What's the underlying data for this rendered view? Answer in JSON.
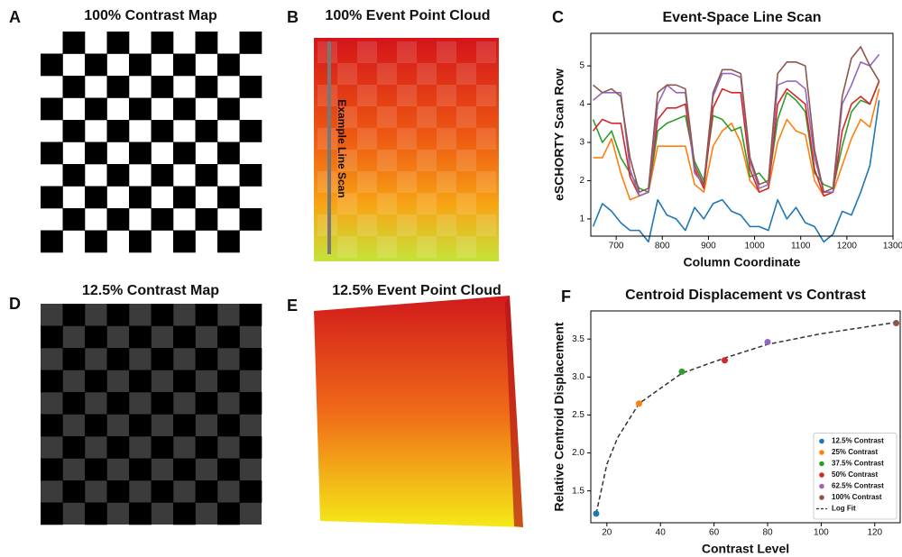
{
  "panel_labels": [
    "A",
    "B",
    "C",
    "D",
    "E",
    "F"
  ],
  "images": [
    {
      "title": "100% Contrast Map"
    },
    {
      "title": "100% Event Point Cloud",
      "annotation": "Example Line Scan"
    },
    {
      "title": "12.5% Contrast Map"
    },
    {
      "title": "12.5% Event Point Cloud"
    }
  ],
  "chart_data": [
    {
      "type": "line",
      "title": "Event-Space Line Scan",
      "x_label": "Column Coordinate",
      "y_label": "eSCHORTY Scan Row",
      "x": [
        650,
        670,
        690,
        710,
        730,
        750,
        770,
        790,
        810,
        830,
        850,
        870,
        890,
        910,
        930,
        950,
        970,
        990,
        1010,
        1030,
        1050,
        1070,
        1090,
        1110,
        1130,
        1150,
        1170,
        1190,
        1210,
        1230,
        1250,
        1270
      ],
      "series": [
        {
          "color": "#1f77b4",
          "values": [
            0.8,
            1.4,
            1.2,
            0.9,
            0.7,
            0.7,
            0.4,
            1.5,
            1.1,
            1.0,
            0.7,
            1.3,
            1.0,
            1.4,
            1.5,
            1.2,
            1.1,
            0.8,
            0.8,
            0.7,
            1.5,
            1.0,
            1.3,
            0.9,
            0.8,
            0.4,
            0.6,
            1.2,
            1.1,
            1.7,
            2.4,
            4.1
          ]
        },
        {
          "color": "#ff7f0e",
          "values": [
            2.6,
            2.6,
            3.1,
            2.2,
            1.5,
            1.6,
            1.7,
            2.9,
            2.9,
            2.9,
            2.9,
            1.9,
            1.7,
            2.9,
            3.3,
            3.5,
            3.0,
            2.0,
            1.7,
            1.8,
            3.0,
            3.6,
            3.3,
            3.2,
            2.0,
            1.6,
            1.7,
            2.4,
            3.1,
            3.6,
            3.4,
            4.4
          ]
        },
        {
          "color": "#2ca02c",
          "values": [
            3.6,
            3.0,
            3.3,
            2.6,
            2.2,
            1.8,
            1.7,
            3.3,
            3.5,
            3.6,
            3.7,
            2.5,
            2.0,
            3.7,
            3.6,
            3.3,
            3.4,
            2.1,
            2.2,
            1.9,
            3.6,
            4.3,
            4.1,
            3.8,
            2.2,
            1.9,
            1.8,
            2.9,
            3.8,
            4.1,
            4.0,
            4.6
          ]
        },
        {
          "color": "#d62728",
          "values": [
            3.3,
            3.6,
            3.5,
            3.5,
            2.1,
            1.6,
            1.7,
            3.6,
            3.9,
            3.9,
            4.0,
            2.3,
            1.8,
            3.9,
            4.4,
            4.3,
            4.3,
            2.3,
            1.7,
            1.8,
            4.0,
            4.4,
            4.2,
            4.0,
            2.3,
            1.6,
            1.7,
            3.3,
            4.0,
            4.2,
            4.0,
            4.6
          ]
        },
        {
          "color": "#9467bd",
          "values": [
            4.1,
            4.3,
            4.3,
            4.3,
            2.3,
            1.6,
            1.7,
            4.0,
            4.5,
            4.3,
            4.3,
            2.2,
            1.9,
            4.2,
            4.8,
            4.8,
            4.7,
            2.5,
            1.8,
            1.9,
            4.5,
            4.6,
            4.6,
            4.4,
            2.6,
            1.7,
            1.7,
            4.0,
            4.5,
            5.1,
            5.0,
            5.3
          ]
        },
        {
          "color": "#8c564b",
          "values": [
            4.5,
            4.3,
            4.4,
            4.2,
            2.6,
            1.7,
            1.8,
            4.3,
            4.5,
            4.5,
            4.4,
            2.4,
            1.9,
            4.3,
            4.9,
            4.9,
            4.8,
            2.6,
            1.9,
            2.0,
            4.8,
            5.1,
            5.1,
            5.0,
            2.8,
            1.7,
            1.8,
            4.2,
            5.2,
            5.5,
            5.0,
            4.6
          ]
        }
      ],
      "xlim": [
        645,
        1300
      ],
      "xticks": [
        700,
        800,
        900,
        1000,
        1100,
        1200,
        1300
      ],
      "ylim": [
        0.55,
        5.85
      ],
      "yticks": [
        1,
        2,
        3,
        4,
        5
      ]
    },
    {
      "type": "scatter",
      "title": "Centroid Displacement vs Contrast",
      "x_label": "Contrast Level",
      "y_label": "Relative Centroid Displacement",
      "series": [
        {
          "name": "12.5% Contrast",
          "color": "#1f77b4",
          "x": [
            16
          ],
          "values": [
            1.2
          ]
        },
        {
          "name": "25% Contrast",
          "color": "#ff7f0e",
          "x": [
            32
          ],
          "values": [
            2.65
          ]
        },
        {
          "name": "37.5% Contrast",
          "color": "#2ca02c",
          "x": [
            48
          ],
          "values": [
            3.07
          ]
        },
        {
          "name": "50% Contrast",
          "color": "#d62728",
          "x": [
            64
          ],
          "values": [
            3.22
          ]
        },
        {
          "name": "62.5% Contrast",
          "color": "#9467bd",
          "x": [
            80
          ],
          "values": [
            3.46
          ]
        },
        {
          "name": "100% Contrast",
          "color": "#8c564b",
          "x": [
            128
          ],
          "values": [
            3.71
          ]
        }
      ],
      "fit": {
        "name": "Log Fit",
        "color": "#333333",
        "line_style": "dashed",
        "x": [
          16,
          20,
          24,
          32,
          40,
          48,
          64,
          80,
          100,
          128
        ],
        "values": [
          1.2,
          1.85,
          2.2,
          2.65,
          2.85,
          3.05,
          3.25,
          3.43,
          3.57,
          3.72
        ]
      },
      "xlim": [
        14,
        129.5
      ],
      "xticks": [
        20,
        40,
        60,
        80,
        100,
        120
      ],
      "ylim": [
        1.08,
        3.87
      ],
      "yticks": [
        1.5,
        {
          "value": 2,
          "label": "2.0"
        },
        2.5,
        {
          "value": 3,
          "label": "3.0"
        },
        3.5
      ],
      "legend": "lower right"
    }
  ]
}
